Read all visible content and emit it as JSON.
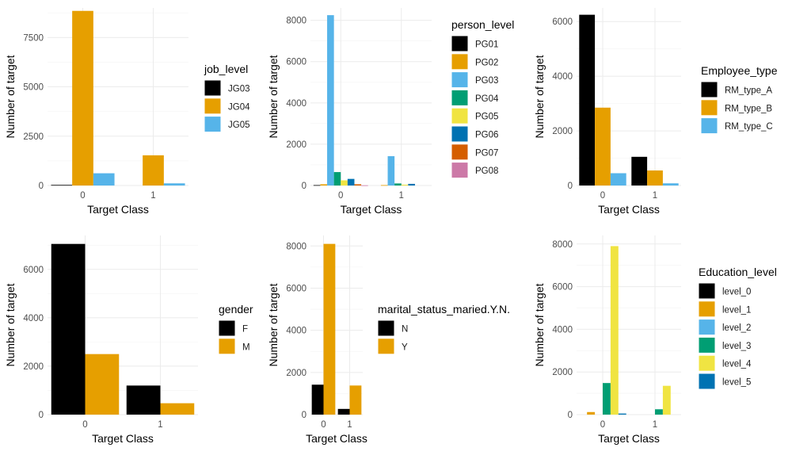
{
  "palette": [
    "#000000",
    "#E69F00",
    "#56B4E9",
    "#009E73",
    "#F0E442",
    "#0072B2",
    "#D55E00",
    "#CC79A7"
  ],
  "chart_data": [
    {
      "type": "bar",
      "xlabel": "Target Class",
      "ylabel": "Number of target",
      "categories": [
        "0",
        "1"
      ],
      "legend_title": "job_level",
      "ylim": [
        0,
        9000
      ],
      "yticks": [
        0,
        2500,
        5000,
        7500
      ],
      "series": [
        {
          "name": "JG03",
          "values": [
            30,
            0
          ]
        },
        {
          "name": "JG04",
          "values": [
            8850,
            1530
          ]
        },
        {
          "name": "JG05",
          "values": [
            620,
            110
          ]
        }
      ]
    },
    {
      "type": "bar",
      "xlabel": "Target Class",
      "ylabel": "Number of target",
      "categories": [
        "0",
        "1"
      ],
      "legend_title": "person_level",
      "ylim": [
        0,
        8600
      ],
      "yticks": [
        0,
        2000,
        4000,
        6000,
        8000
      ],
      "series": [
        {
          "name": "PG01",
          "values": [
            20,
            0
          ]
        },
        {
          "name": "PG02",
          "values": [
            60,
            20
          ]
        },
        {
          "name": "PG03",
          "values": [
            8250,
            1420
          ]
        },
        {
          "name": "PG04",
          "values": [
            650,
            100
          ]
        },
        {
          "name": "PG05",
          "values": [
            250,
            40
          ]
        },
        {
          "name": "PG06",
          "values": [
            320,
            80
          ]
        },
        {
          "name": "PG07",
          "values": [
            60,
            0
          ]
        },
        {
          "name": "PG08",
          "values": [
            10,
            0
          ]
        }
      ]
    },
    {
      "type": "bar",
      "xlabel": "Target Class",
      "ylabel": "Number of target",
      "categories": [
        "0",
        "1"
      ],
      "legend_title": "Employee_type",
      "ylim": [
        0,
        6500
      ],
      "yticks": [
        0,
        2000,
        4000,
        6000
      ],
      "series": [
        {
          "name": "RM_type_A",
          "values": [
            6250,
            1050
          ]
        },
        {
          "name": "RM_type_B",
          "values": [
            2850,
            550
          ]
        },
        {
          "name": "RM_type_C",
          "values": [
            450,
            80
          ]
        }
      ]
    },
    {
      "type": "bar",
      "xlabel": "Target Class",
      "ylabel": "Number of target",
      "categories": [
        "0",
        "1"
      ],
      "legend_title": "gender",
      "ylim": [
        0,
        7400
      ],
      "yticks": [
        0,
        2000,
        4000,
        6000
      ],
      "series": [
        {
          "name": "F",
          "values": [
            7050,
            1200
          ]
        },
        {
          "name": "M",
          "values": [
            2500,
            470
          ]
        }
      ]
    },
    {
      "type": "bar",
      "xlabel": "Target Class",
      "ylabel": "Number of target",
      "categories": [
        "0",
        "1"
      ],
      "legend_title": "marital_status_maried.Y.N.",
      "ylim": [
        0,
        8500
      ],
      "yticks": [
        0,
        2000,
        4000,
        6000,
        8000
      ],
      "series": [
        {
          "name": "N",
          "values": [
            1420,
            270
          ]
        },
        {
          "name": "Y",
          "values": [
            8100,
            1380
          ]
        }
      ]
    },
    {
      "type": "bar",
      "xlabel": "Target Class",
      "ylabel": "Number of target",
      "categories": [
        "0",
        "1"
      ],
      "legend_title": "Education_level",
      "ylim": [
        0,
        8400
      ],
      "yticks": [
        0,
        2000,
        4000,
        6000,
        8000
      ],
      "series": [
        {
          "name": "level_0",
          "values": [
            0,
            0
          ]
        },
        {
          "name": "level_1",
          "values": [
            120,
            0
          ]
        },
        {
          "name": "level_2",
          "values": [
            0,
            0
          ]
        },
        {
          "name": "level_3",
          "values": [
            1480,
            250
          ]
        },
        {
          "name": "level_4",
          "values": [
            7900,
            1350
          ]
        },
        {
          "name": "level_5",
          "values": [
            50,
            0
          ]
        }
      ]
    }
  ]
}
